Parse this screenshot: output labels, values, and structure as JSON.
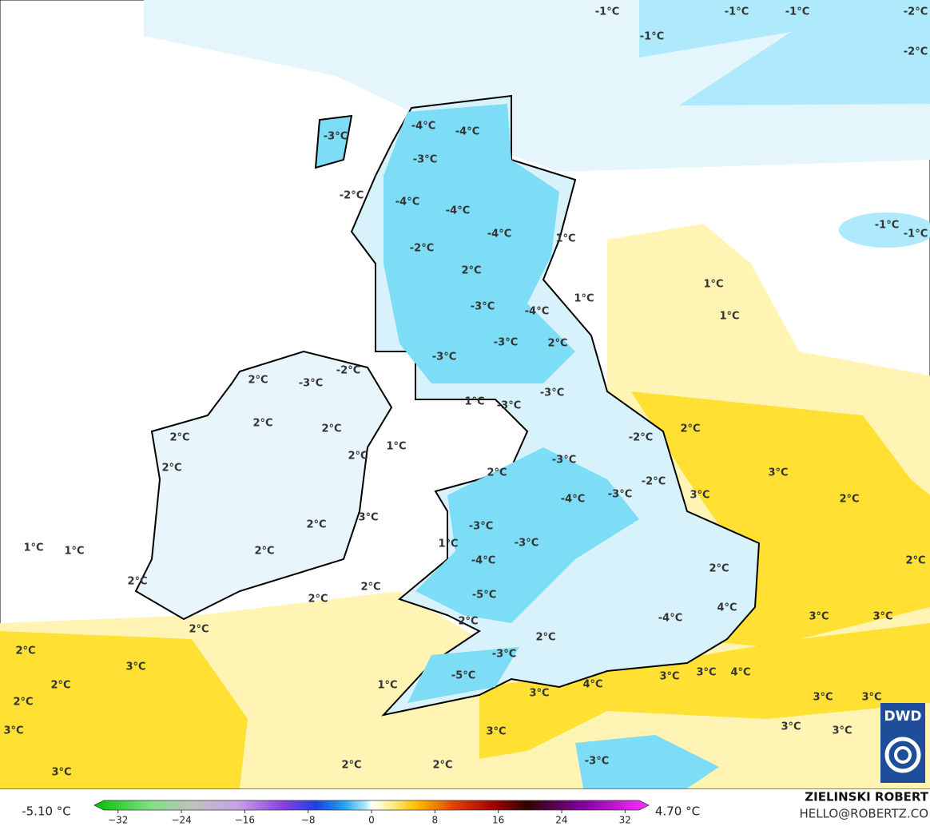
{
  "map": {
    "labels": [
      "-1°C",
      "-1°C",
      "-1°C",
      "-2°C",
      "-1°C",
      "-2°C",
      "-4°C",
      "-4°C",
      "-3°C",
      "-3°C",
      "-2°C",
      "-4°C",
      "-4°C",
      "-4°C",
      "1°C",
      "-1°C",
      "-1°C",
      "-2°C",
      "2°C",
      "1°C",
      "1°C",
      "-3°C",
      "-4°C",
      "1°C",
      "-3°C",
      "2°C",
      "-3°C",
      "-2°C",
      "2°C",
      "-3°C",
      "-3°C",
      "1°C",
      "-3°C",
      "2°C",
      "2°C",
      "2°C",
      "-2°C",
      "2°C",
      "2°C",
      "1°C",
      "-3°C",
      "2°C",
      "3°C",
      "2°C",
      "-2°C",
      "3°C",
      "-3°C",
      "-4°C",
      "2°C",
      "3°C",
      "-3°C",
      "2°C",
      "1°C",
      "-3°C",
      "1°C",
      "1°C",
      "2°C",
      "-4°C",
      "2°C",
      "2°C",
      "2°C",
      "2°C",
      "2°C",
      "-5°C",
      "4°C",
      "3°C",
      "3°C",
      "2°C",
      "2°C",
      "-4°C",
      "2°C",
      "2°C",
      "-3°C",
      "3°C",
      "-5°C",
      "3°C",
      "3°C",
      "4°C",
      "2°C",
      "1°C",
      "4°C",
      "3°C",
      "3°C",
      "3°C",
      "2°C",
      "3°C",
      "3°C",
      "3°C",
      "3°C",
      "-3°C",
      "2°C",
      "2°C",
      "3°C"
    ],
    "logo": "DWD"
  },
  "colorbar": {
    "min_label": "-5.10 °C",
    "max_label": "4.70 °C",
    "range": [
      -35,
      35
    ],
    "ticks": [
      {
        "value": -32,
        "label": "−32"
      },
      {
        "value": -24,
        "label": "−24"
      },
      {
        "value": -16,
        "label": "−16"
      },
      {
        "value": -8,
        "label": "−8"
      },
      0,
      8,
      16,
      24,
      32
    ]
  },
  "credit": {
    "name": "ZIELINSKI ROBERT",
    "email": "HELLO@ROBERTZ.CO"
  }
}
